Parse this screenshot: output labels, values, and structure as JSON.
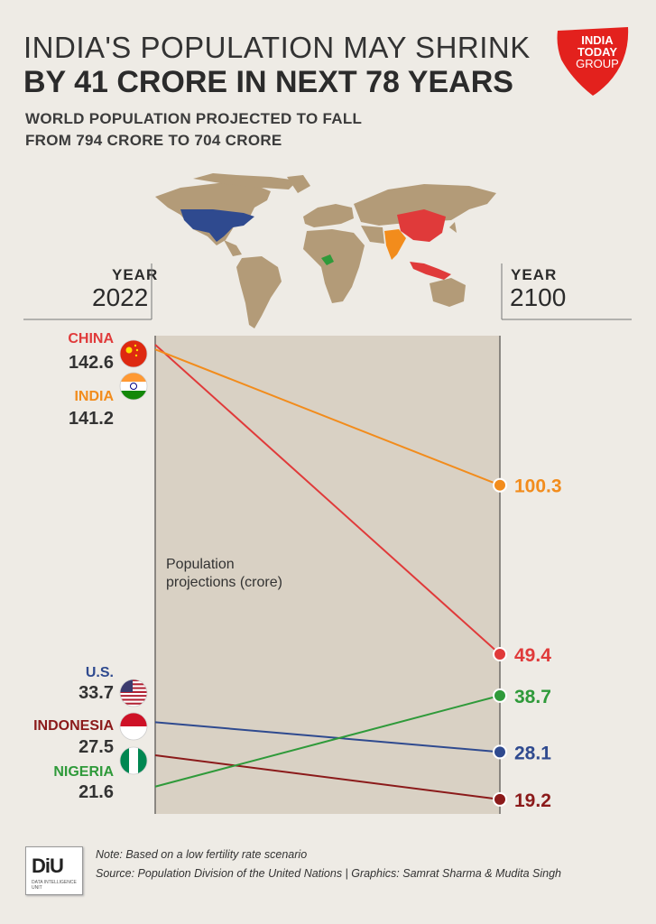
{
  "header": {
    "title_line1": "INDIA'S POPULATION MAY SHRINK",
    "title_line2": "BY 41 CRORE IN NEXT 78 YEARS",
    "subtitle_line1": "WORLD POPULATION PROJECTED TO FALL",
    "subtitle_line2": "FROM 794 CRORE TO 704 CRORE"
  },
  "logo": {
    "line1": "INDIA",
    "line2": "TODAY",
    "line3": "GROUP",
    "color": "#e3211d"
  },
  "years": {
    "caption": "YEAR",
    "start": "2022",
    "end": "2100"
  },
  "chart_data": {
    "type": "line",
    "x": [
      "2022",
      "2100"
    ],
    "annotation": "Population projections (crore)",
    "ylim": [
      0,
      160
    ],
    "series": [
      {
        "name": "CHINA",
        "values": [
          142.6,
          49.4
        ],
        "start_label": "142.6",
        "end_label": "49.4",
        "color": "#e03a3a"
      },
      {
        "name": "INDIA",
        "values": [
          141.2,
          100.3
        ],
        "start_label": "141.2",
        "end_label": "100.3",
        "color": "#f28c1c"
      },
      {
        "name": "U.S.",
        "values": [
          33.7,
          28.1
        ],
        "start_label": "33.7",
        "end_label": "28.1",
        "color": "#2f4a8f"
      },
      {
        "name": "INDONESIA",
        "values": [
          27.5,
          19.2
        ],
        "start_label": "27.5",
        "end_label": "19.2",
        "color": "#8b1a1a"
      },
      {
        "name": "NIGERIA",
        "values": [
          21.6,
          38.7
        ],
        "start_label": "21.6",
        "end_label": "38.7",
        "color": "#2f9a3a"
      }
    ]
  },
  "footer": {
    "logo_text": "DiU",
    "logo_sub": "DATA INTELLIGENCE UNIT",
    "note": "Note: Based on a low fertility rate scenario",
    "source": "Source: Population Division of the United Nations | Graphics: Samrat Sharma & Mudita Singh"
  }
}
